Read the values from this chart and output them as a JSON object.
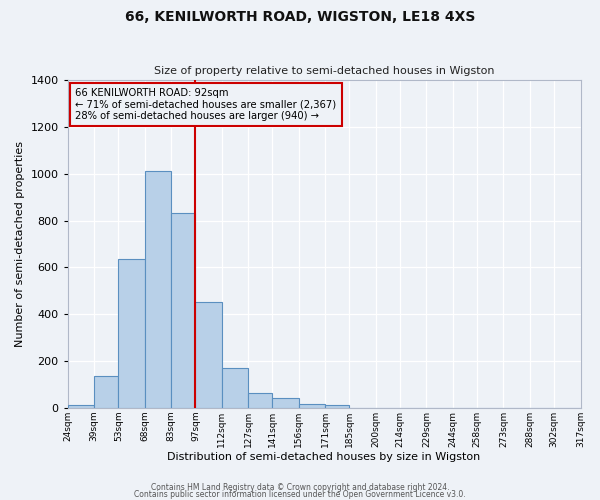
{
  "title": "66, KENILWORTH ROAD, WIGSTON, LE18 4XS",
  "subtitle": "Size of property relative to semi-detached houses in Wigston",
  "xlabel": "Distribution of semi-detached houses by size in Wigston",
  "ylabel": "Number of semi-detached properties",
  "bin_labels": [
    "24sqm",
    "39sqm",
    "53sqm",
    "68sqm",
    "83sqm",
    "97sqm",
    "112sqm",
    "127sqm",
    "141sqm",
    "156sqm",
    "171sqm",
    "185sqm",
    "200sqm",
    "214sqm",
    "229sqm",
    "244sqm",
    "258sqm",
    "273sqm",
    "288sqm",
    "302sqm",
    "317sqm"
  ],
  "bar_values": [
    10,
    135,
    635,
    1010,
    830,
    450,
    170,
    65,
    40,
    15,
    10,
    0,
    0,
    0,
    0,
    0,
    0,
    0,
    0,
    0
  ],
  "bar_color": "#b8d0e8",
  "bar_edge_color": "#5a8fc0",
  "vline_x": 97,
  "vline_color": "#cc0000",
  "annotation_title": "66 KENILWORTH ROAD: 92sqm",
  "annotation_line1": "← 71% of semi-detached houses are smaller (2,367)",
  "annotation_line2": "28% of semi-detached houses are larger (940) →",
  "annotation_box_color": "#cc0000",
  "ylim": [
    0,
    1400
  ],
  "yticks": [
    0,
    200,
    400,
    600,
    800,
    1000,
    1200,
    1400
  ],
  "bin_edges": [
    24,
    39,
    53,
    68,
    83,
    97,
    112,
    127,
    141,
    156,
    171,
    185,
    200,
    214,
    229,
    244,
    258,
    273,
    288,
    302,
    317
  ],
  "footer1": "Contains HM Land Registry data © Crown copyright and database right 2024.",
  "footer2": "Contains public sector information licensed under the Open Government Licence v3.0.",
  "background_color": "#eef2f7",
  "grid_color": "#ffffff"
}
